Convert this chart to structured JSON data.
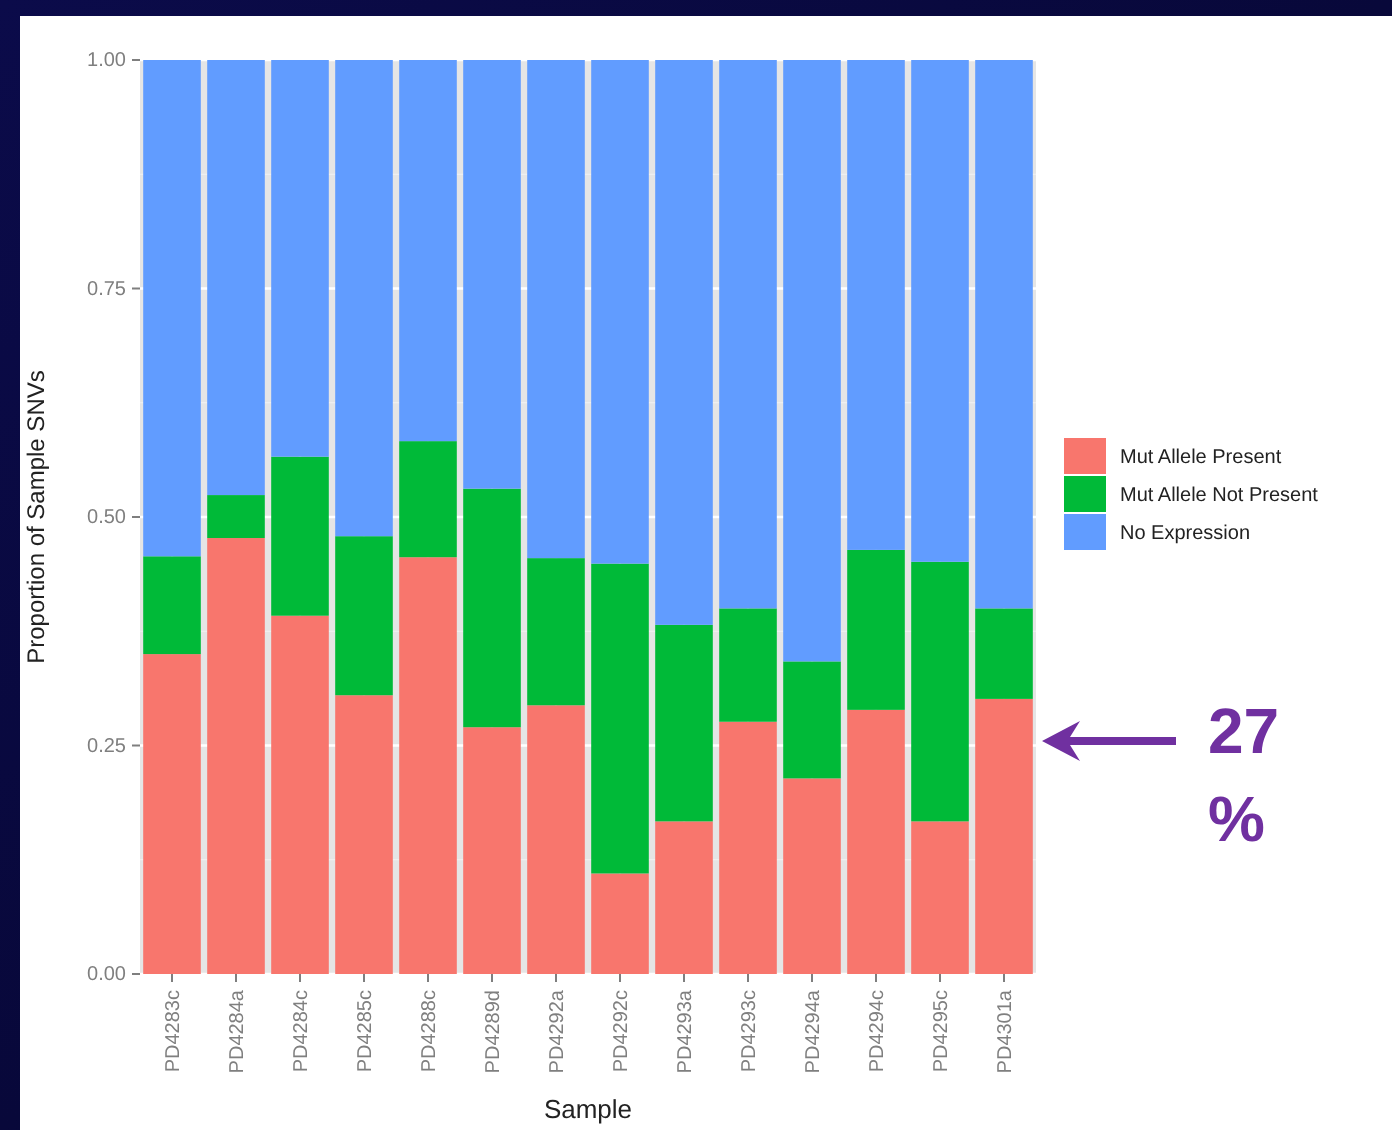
{
  "chart_data": {
    "type": "bar",
    "stacked": true,
    "xlabel": "Sample",
    "ylabel": "Proportion of Sample SNVs",
    "categories": [
      "PD4283c",
      "PD4284a",
      "PD4284c",
      "PD4285c",
      "PD4288c",
      "PD4289d",
      "PD4292a",
      "PD4292c",
      "PD4293a",
      "PD4293c",
      "PD4294a",
      "PD4294c",
      "PD4295c",
      "PD4301a"
    ],
    "series": [
      {
        "name": "Mut Allele Present",
        "color": "#f8766d",
        "values": [
          0.35,
          0.477,
          0.392,
          0.305,
          0.456,
          0.27,
          0.294,
          0.11,
          0.167,
          0.276,
          0.214,
          0.289,
          0.167,
          0.301
        ]
      },
      {
        "name": "Mut Allele Not Present",
        "color": "#00ba38",
        "values": [
          0.107,
          0.047,
          0.174,
          0.174,
          0.127,
          0.261,
          0.161,
          0.339,
          0.215,
          0.124,
          0.128,
          0.175,
          0.284,
          0.099
        ]
      },
      {
        "name": "No Expression",
        "color": "#619cff",
        "values": [
          0.543,
          0.476,
          0.434,
          0.521,
          0.417,
          0.469,
          0.545,
          0.551,
          0.618,
          0.6,
          0.658,
          0.536,
          0.549,
          0.6
        ]
      }
    ],
    "ylim": [
      0,
      1
    ],
    "yticks": [
      {
        "value": 0,
        "label": "0.00"
      },
      {
        "value": 0.25,
        "label": "0.25"
      },
      {
        "value": 0.5,
        "label": "0.50"
      },
      {
        "value": 0.75,
        "label": "0.75"
      },
      {
        "value": 1,
        "label": "1.00"
      }
    ],
    "grid": true,
    "legend": "right",
    "annotations": [
      "27 %"
    ]
  }
}
